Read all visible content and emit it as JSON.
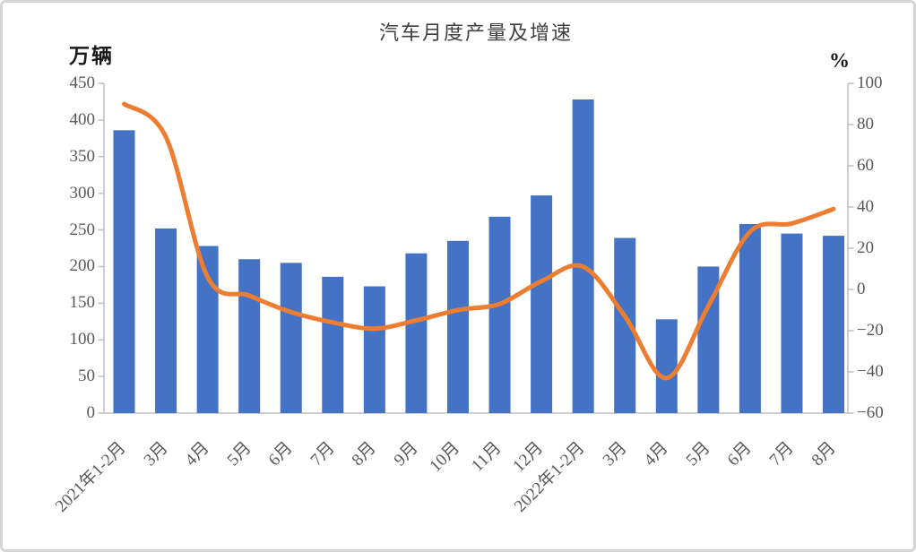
{
  "chart_data": {
    "type": "bar+line",
    "title": "汽车月度产量及增速",
    "legend": "none",
    "gridlines": false,
    "categories": [
      "2021年1-2月",
      "3月",
      "4月",
      "5月",
      "6月",
      "7月",
      "8月",
      "9月",
      "10月",
      "11月",
      "12月",
      "2022年1-2月",
      "3月",
      "4月",
      "5月",
      "6月",
      "7月",
      "8月"
    ],
    "series": [
      {
        "name": "产量",
        "type": "bar",
        "axis": "left",
        "color": "#4472C4",
        "values": [
          386,
          252,
          228,
          210,
          205,
          186,
          173,
          218,
          235,
          268,
          297,
          428,
          239,
          128,
          200,
          258,
          245,
          242
        ]
      },
      {
        "name": "增速",
        "type": "line",
        "axis": "right",
        "color": "#ED7D31",
        "values": [
          90,
          74,
          6,
          -3,
          -11,
          -16,
          -19,
          -15,
          -10,
          -7,
          4,
          11,
          -13,
          -43,
          -8,
          28,
          32,
          39
        ]
      }
    ],
    "left_axis": {
      "unit": "万辆",
      "min": 0,
      "max": 450,
      "step": 50,
      "tick_labels": [
        "450",
        "400",
        "350",
        "300",
        "250",
        "200",
        "150",
        "100",
        "50",
        "0"
      ]
    },
    "right_axis": {
      "unit": "%",
      "min": -60,
      "max": 100,
      "step": 20,
      "tick_labels": [
        "100",
        "80",
        "60",
        "40",
        "20",
        "0",
        "−20",
        "−40",
        "−60"
      ]
    },
    "axis_color": "#BFBFBF",
    "text_color": "#595959"
  }
}
